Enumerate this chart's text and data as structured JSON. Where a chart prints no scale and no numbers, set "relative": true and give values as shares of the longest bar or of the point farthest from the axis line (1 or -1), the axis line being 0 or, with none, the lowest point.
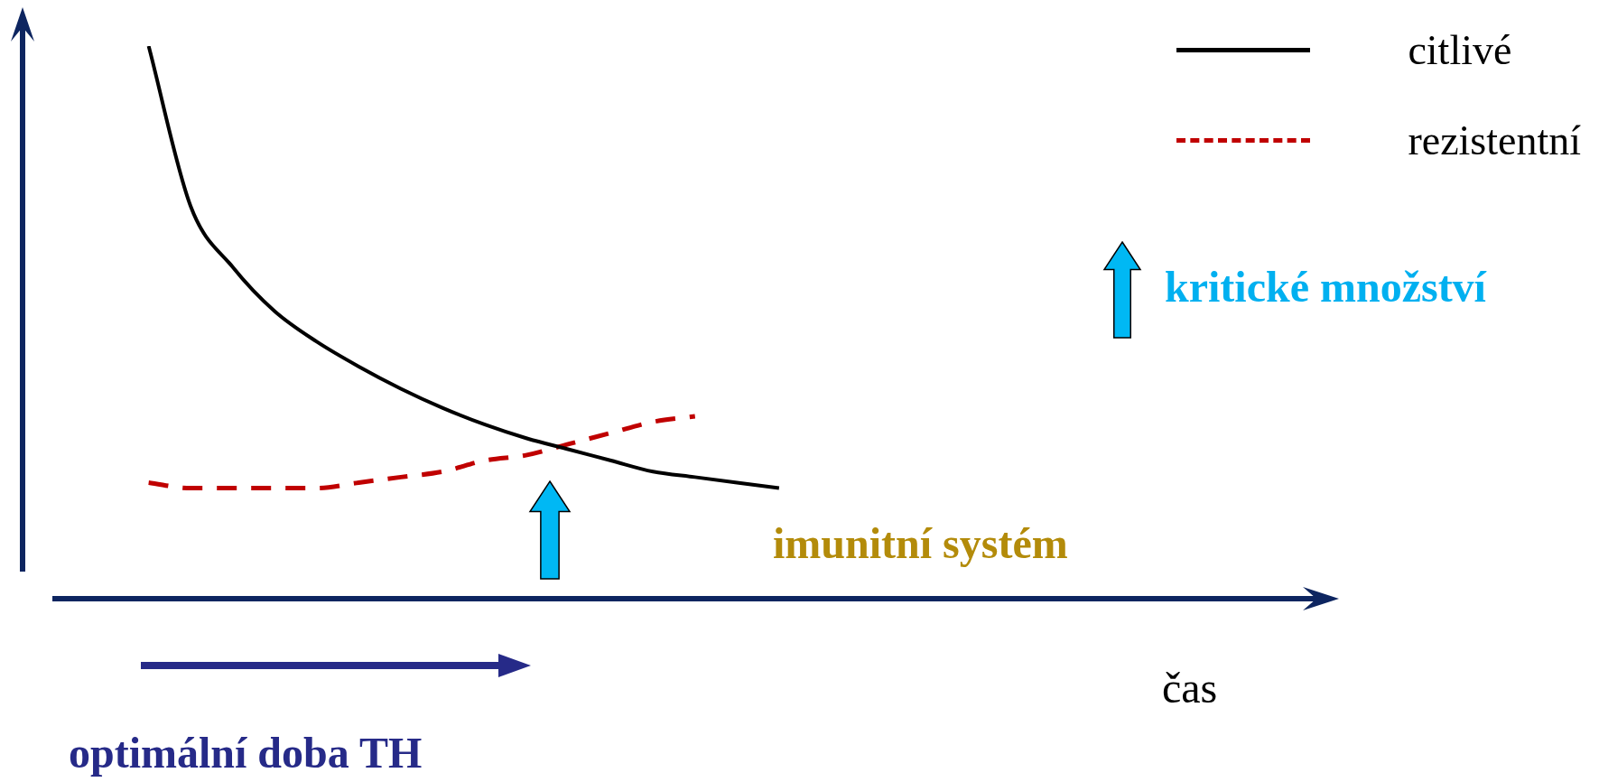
{
  "chart_data": {
    "type": "line",
    "relative": true,
    "xlabel": "čas",
    "legend": "top right",
    "categories": [
      null,
      null,
      null,
      null,
      null,
      null,
      null,
      null,
      null,
      null,
      null,
      null,
      null,
      null,
      null,
      null,
      null,
      null,
      null,
      null,
      null,
      null,
      null,
      null,
      null,
      null,
      null,
      null,
      null,
      null,
      null,
      null
    ],
    "series": [
      {
        "name": "citlivé",
        "color": "#000000",
        "line_style": "solid",
        "values": [
          null,
          null,
          null,
          1.0,
          0.71,
          0.6,
          0.52,
          0.465,
          0.42,
          0.38,
          0.345,
          0.315,
          0.29,
          0.27,
          0.25,
          0.23,
          0.22,
          0.21,
          0.2,
          null,
          null,
          null,
          null,
          null,
          null,
          null,
          null,
          null,
          null,
          null,
          null,
          null
        ]
      },
      {
        "name": "rezistentní",
        "color": "#c00000",
        "line_style": "dashed",
        "values": [
          null,
          null,
          null,
          0.21,
          0.2,
          0.2,
          0.2,
          0.2,
          0.21,
          0.22,
          0.23,
          0.25,
          0.26,
          0.28,
          0.3,
          0.32,
          0.33,
          null,
          null,
          null,
          null,
          null,
          null,
          null,
          null,
          null,
          null,
          null,
          null,
          null,
          null,
          null
        ]
      }
    ],
    "annotations": [
      "kritické množství",
      "imunitní systém",
      "optimální doba TH"
    ]
  }
}
